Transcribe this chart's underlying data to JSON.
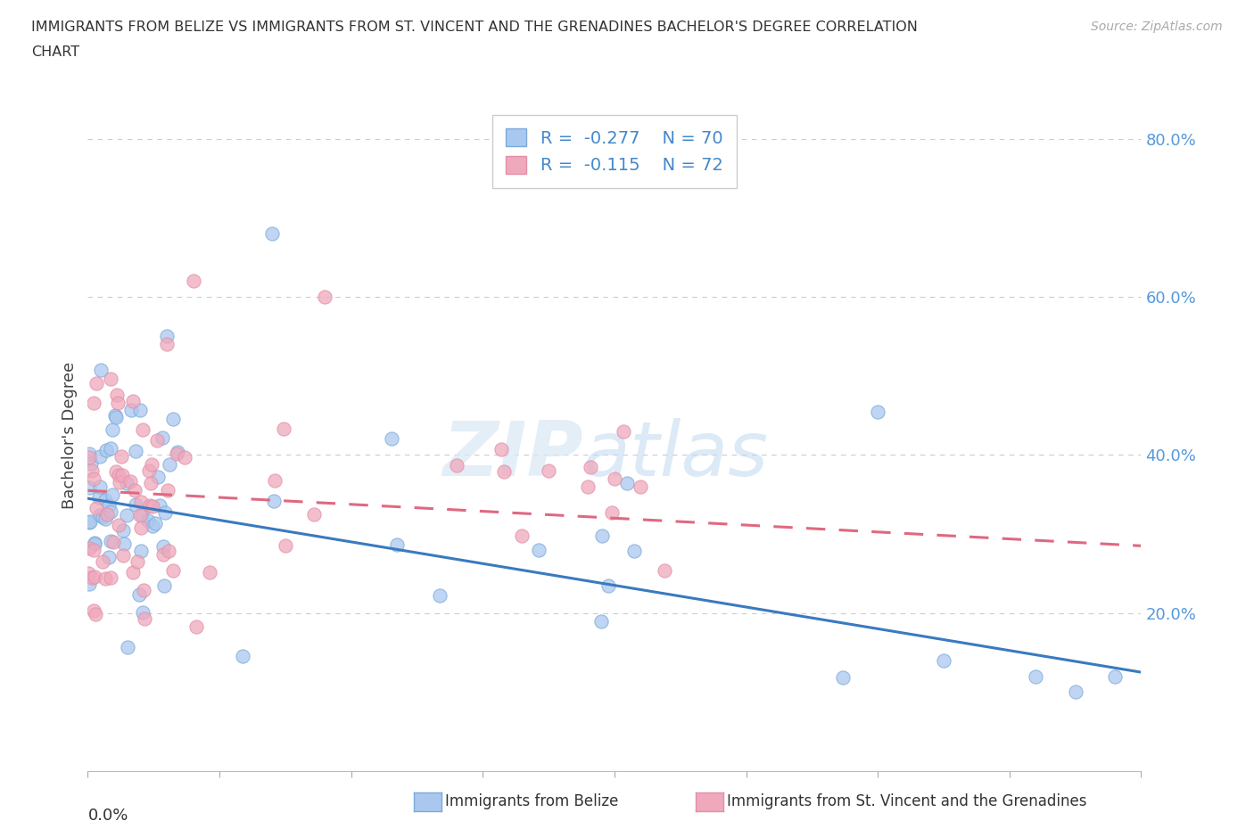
{
  "title_line1": "IMMIGRANTS FROM BELIZE VS IMMIGRANTS FROM ST. VINCENT AND THE GRENADINES BACHELOR'S DEGREE CORRELATION",
  "title_line2": "CHART",
  "source": "Source: ZipAtlas.com",
  "ylabel": "Bachelor's Degree",
  "belize_color": "#aac8ef",
  "svg_color": "#f0a8bc",
  "belize_trend_color": "#3a7abf",
  "svg_trend_color": "#e06880",
  "belize_edge_color": "#7aaad8",
  "svg_edge_color": "#e090a8",
  "right_label_color": "#5599dd",
  "xmin": 0.0,
  "xmax": 0.08,
  "ymin": 0.0,
  "ymax": 0.85,
  "belize_trend_x0": 0.0,
  "belize_trend_y0": 0.345,
  "belize_trend_x1": 0.08,
  "belize_trend_y1": 0.125,
  "svg_trend_x0": 0.0,
  "svg_trend_y0": 0.355,
  "svg_trend_x1": 0.08,
  "svg_trend_y1": 0.285
}
